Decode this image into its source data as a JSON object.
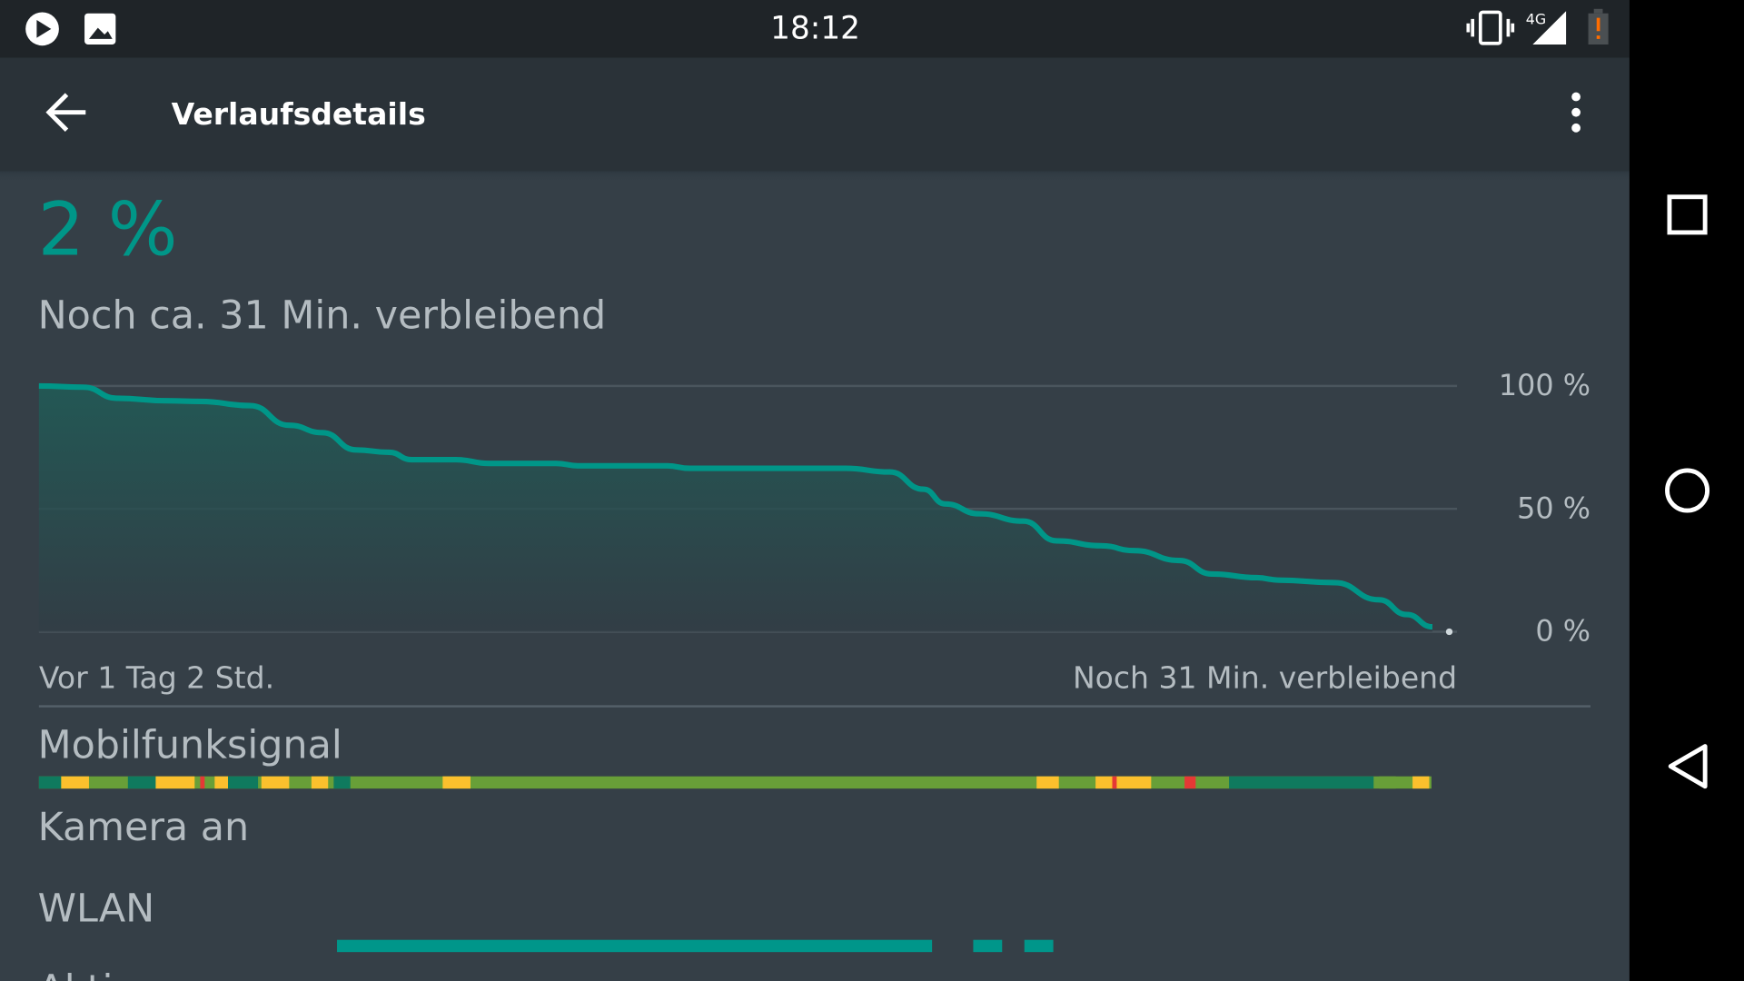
{
  "status_bar": {
    "time": "18:12",
    "network": "4G"
  },
  "toolbar": {
    "title": "Verlaufsdetails"
  },
  "battery": {
    "level": "2 %",
    "remaining": "Noch ca. 31 Min. verbleibend"
  },
  "chart_data": {
    "type": "line",
    "color": "#009688",
    "grid": true,
    "x": [
      0,
      0.83,
      1.46,
      2.39,
      3.02,
      3.95,
      4.68,
      5.3,
      5.93,
      6.55,
      6.97,
      7.8,
      8.42,
      9.67,
      10.09,
      11.75,
      12.17,
      15.08,
      15.91,
      16.54,
      16.95,
      17.58,
      18.41,
      19.03,
      19.86,
      20.49,
      21.32,
      21.94,
      22.78,
      23.19,
      24.23,
      25.06,
      25.58,
      26.06
    ],
    "values": [
      100,
      99.5,
      95,
      94,
      93.7,
      92,
      84,
      81,
      74,
      73,
      70,
      70,
      68.5,
      68.5,
      67.5,
      67.5,
      66.5,
      66.5,
      65,
      58,
      52,
      48,
      45,
      37,
      35,
      33,
      29,
      23.5,
      22,
      21,
      20,
      13,
      7,
      2
    ],
    "xlim": [
      0,
      26.52
    ],
    "ylim": [
      0,
      100
    ],
    "yticks": [
      {
        "value": 0,
        "label": "0 %"
      },
      {
        "value": 50,
        "label": "50 %"
      },
      {
        "value": 100,
        "label": "100 %"
      }
    ],
    "start_label": "Vor 1 Tag 2 Std.",
    "end_label": "Noch 31 Min. verbleibend"
  },
  "sections": [
    "Mobilfunksignal",
    "Kamera an",
    "WLAN",
    "Aktiv"
  ]
}
